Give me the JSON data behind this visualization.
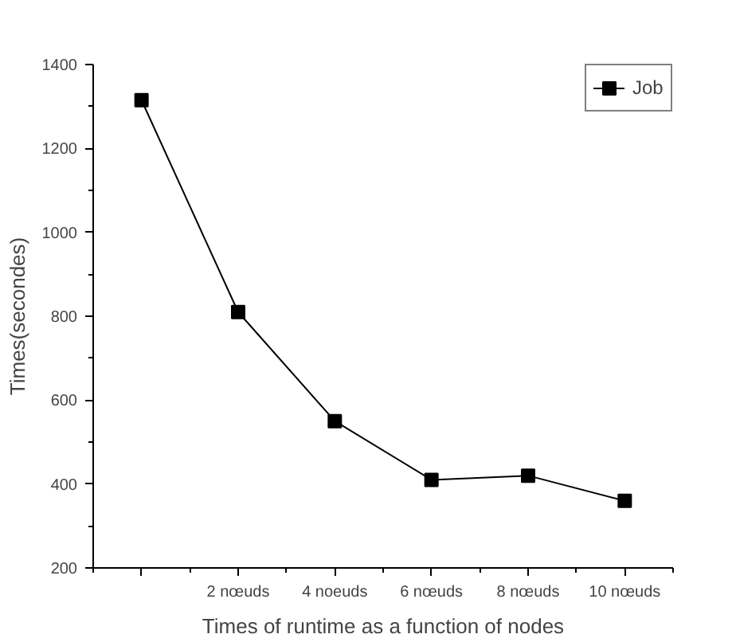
{
  "chart_data": {
    "type": "line",
    "xlabel": "Times of runtime as a function of nodes",
    "ylabel": "Times(secondes)",
    "categories": [
      null,
      "2 nœuds",
      "4 noeuds",
      "6 nœuds",
      "8 nœuds",
      "10 nœuds"
    ],
    "series": [
      {
        "name": "Job",
        "color": "#000000",
        "values": [
          1315,
          810,
          550,
          410,
          420,
          360
        ]
      }
    ],
    "ylim": [
      200,
      1400
    ],
    "yticks": [
      200,
      400,
      600,
      800,
      1000,
      1200,
      1400
    ],
    "marker": "square",
    "line_style": "solid",
    "grid": false,
    "legend": "top right"
  }
}
